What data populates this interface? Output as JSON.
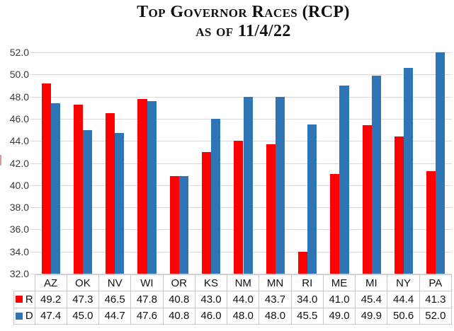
{
  "title": {
    "line1": "Top Governor Races (RCP)",
    "line2": "as of 11/4/22"
  },
  "chart_data": {
    "type": "bar",
    "title": "Top Governor Races (RCP) as of 11/4/22",
    "categories": [
      "AZ",
      "OK",
      "NV",
      "WI",
      "OR",
      "KS",
      "NM",
      "MN",
      "RI",
      "ME",
      "MI",
      "NY",
      "PA"
    ],
    "series": [
      {
        "name": "R",
        "color": "#FF0000",
        "values": [
          49.2,
          47.3,
          46.5,
          47.8,
          40.8,
          43.0,
          44.0,
          43.7,
          34.0,
          41.0,
          45.4,
          44.4,
          41.3
        ]
      },
      {
        "name": "D",
        "color": "#2E75B6",
        "values": [
          47.4,
          45.0,
          44.7,
          47.6,
          40.8,
          46.0,
          48.0,
          48.0,
          45.5,
          49.0,
          49.9,
          50.6,
          52.0
        ]
      }
    ],
    "xlabel": "",
    "ylabel": "",
    "ylim": [
      32.0,
      52.0
    ],
    "ytick_step": 2.0,
    "ytick_labels": [
      "52.0",
      "50.0",
      "48.0",
      "46.0",
      "44.0",
      "42.0",
      "40.0",
      "38.0",
      "36.0",
      "34.0",
      "32.0"
    ],
    "grid": true,
    "legend_position": "data-table-left",
    "data_table": true,
    "value_format": "one-decimal"
  },
  "colors": {
    "series_r": "#FF0000",
    "series_d": "#2E75B6",
    "gridline": "#D9D9D9",
    "table_border": "#C9C9C9",
    "axis_text": "#3A3A3A",
    "table_text": "#111111",
    "title_text": "#111111",
    "background": "#FFFFFF"
  }
}
